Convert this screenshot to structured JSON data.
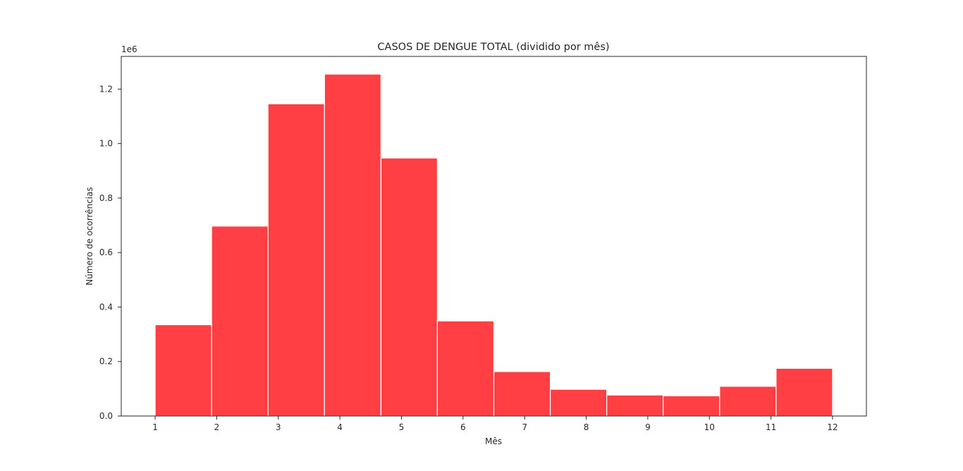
{
  "chart_data": {
    "type": "bar",
    "title": "CASOS DE DENGUE TOTAL (dividido por mês)",
    "xlabel": "Mês",
    "ylabel": "Número de ocorrências",
    "y_offset_label": "1e6",
    "y_scale_factor": 1000000,
    "bar_color": "#ff3f44",
    "bar_edge_color": "#ffffff",
    "x_ticks": [
      1,
      2,
      3,
      4,
      5,
      6,
      7,
      8,
      9,
      10,
      11,
      12
    ],
    "x_tick_labels": [
      "1",
      "2",
      "3",
      "4",
      "5",
      "6",
      "7",
      "8",
      "9",
      "10",
      "11",
      "12"
    ],
    "y_ticks": [
      0.0,
      0.2,
      0.4,
      0.6,
      0.8,
      1.0,
      1.2
    ],
    "y_tick_labels": [
      "0.0",
      "0.2",
      "0.4",
      "0.6",
      "0.8",
      "1.0",
      "1.2"
    ],
    "xlim": [
      0.45,
      12.55
    ],
    "ylim": [
      0,
      1.32
    ],
    "grid": false,
    "bins": [
      {
        "x_start": 1.0,
        "x_end": 1.917,
        "value": 0.335
      },
      {
        "x_start": 1.917,
        "x_end": 2.833,
        "value": 0.697
      },
      {
        "x_start": 2.833,
        "x_end": 3.75,
        "value": 1.146
      },
      {
        "x_start": 3.75,
        "x_end": 4.667,
        "value": 1.255
      },
      {
        "x_start": 4.667,
        "x_end": 5.583,
        "value": 0.947
      },
      {
        "x_start": 5.583,
        "x_end": 6.5,
        "value": 0.349
      },
      {
        "x_start": 6.5,
        "x_end": 7.417,
        "value": 0.163
      },
      {
        "x_start": 7.417,
        "x_end": 8.333,
        "value": 0.098
      },
      {
        "x_start": 8.333,
        "x_end": 9.25,
        "value": 0.077
      },
      {
        "x_start": 9.25,
        "x_end": 10.167,
        "value": 0.074
      },
      {
        "x_start": 10.167,
        "x_end": 11.083,
        "value": 0.109
      },
      {
        "x_start": 11.083,
        "x_end": 12.0,
        "value": 0.175
      }
    ]
  }
}
